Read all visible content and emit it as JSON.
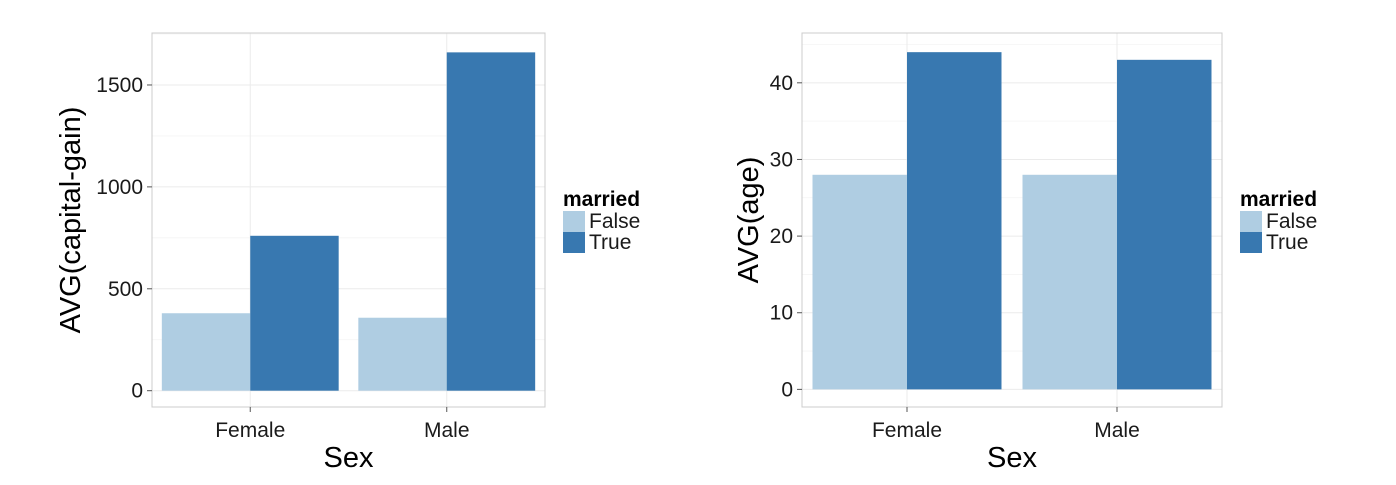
{
  "chart_data": [
    {
      "type": "bar",
      "xlabel": "Sex",
      "ylabel": "AVG(capital-gain)",
      "categories": [
        "Female",
        "Male"
      ],
      "series": [
        {
          "name": "False",
          "values": [
            380,
            358
          ]
        },
        {
          "name": "True",
          "values": [
            760,
            1660
          ]
        }
      ],
      "ylim": [
        -80,
        1755
      ],
      "yticks": [
        0,
        500,
        1000,
        1500
      ],
      "legend_title": "married",
      "legend_position": "right",
      "grid": true,
      "colors": {
        "False": "#afcde2",
        "True": "#3878b0"
      }
    },
    {
      "type": "bar",
      "xlabel": "Sex",
      "ylabel": "AVG(age)",
      "categories": [
        "Female",
        "Male"
      ],
      "series": [
        {
          "name": "False",
          "values": [
            28,
            28
          ]
        },
        {
          "name": "True",
          "values": [
            44,
            43
          ]
        }
      ],
      "ylim": [
        -2.3,
        46.5
      ],
      "yticks": [
        0,
        10,
        20,
        30,
        40
      ],
      "legend_title": "married",
      "legend_position": "right",
      "grid": true,
      "colors": {
        "False": "#afcde2",
        "True": "#3878b0"
      }
    }
  ]
}
